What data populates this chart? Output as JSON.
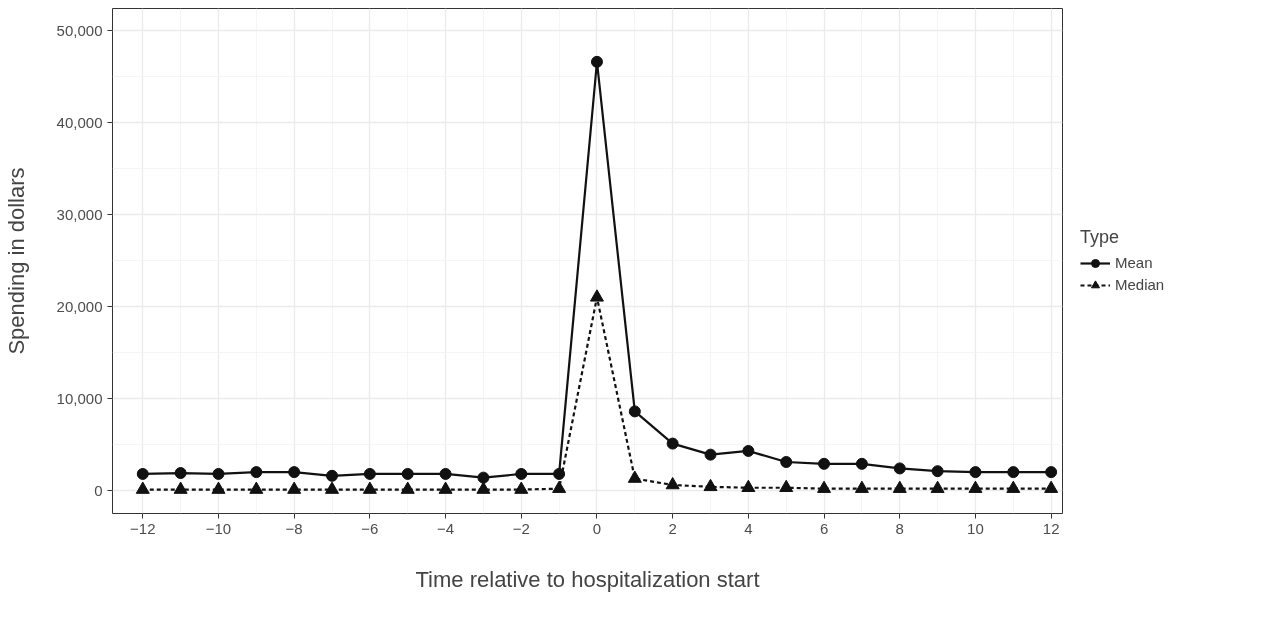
{
  "chart_data": {
    "type": "line",
    "xlabel": "Time relative to hospitalization start",
    "ylabel": "Spending in dollars",
    "legend_title": "Type",
    "legend": "right",
    "grid": true,
    "x": [
      -12,
      -11,
      -10,
      -9,
      -8,
      -7,
      -6,
      -5,
      -4,
      -3,
      -2,
      -1,
      0,
      1,
      2,
      3,
      4,
      5,
      6,
      7,
      8,
      9,
      10,
      11,
      12
    ],
    "xlim": [
      -12.8,
      12.3
    ],
    "xticks": [
      {
        "value": -12,
        "label": "−12"
      },
      {
        "value": -10,
        "label": "−10"
      },
      {
        "value": -8,
        "label": "−8"
      },
      {
        "value": -6,
        "label": "−6"
      },
      {
        "value": -4,
        "label": "−4"
      },
      {
        "value": -2,
        "label": "−2"
      },
      0,
      2,
      4,
      6,
      8,
      10,
      12
    ],
    "ylim": [
      -2500,
      52400
    ],
    "yticks": [
      0,
      {
        "value": 10000,
        "label": "10,000"
      },
      {
        "value": 20000,
        "label": "20,000"
      },
      {
        "value": 30000,
        "label": "30,000"
      },
      {
        "value": 40000,
        "label": "40,000"
      },
      {
        "value": 50000,
        "label": "50,000"
      }
    ],
    "series": [
      {
        "name": "Mean",
        "color": "#111111",
        "marker": "circle",
        "line_style": "solid",
        "values": [
          1800,
          1900,
          1800,
          2000,
          2000,
          1600,
          1800,
          1800,
          1800,
          1400,
          1800,
          1800,
          46600,
          8600,
          5100,
          3900,
          4300,
          3100,
          2900,
          2900,
          2400,
          2100,
          2000,
          2000,
          2000
        ]
      },
      {
        "name": "Median",
        "color": "#111111",
        "marker": "triangle",
        "line_style": "dashed",
        "values": [
          100,
          100,
          100,
          100,
          100,
          100,
          100,
          100,
          100,
          100,
          100,
          200,
          21000,
          1300,
          600,
          400,
          300,
          300,
          200,
          200,
          200,
          200,
          200,
          200,
          200
        ]
      }
    ]
  }
}
